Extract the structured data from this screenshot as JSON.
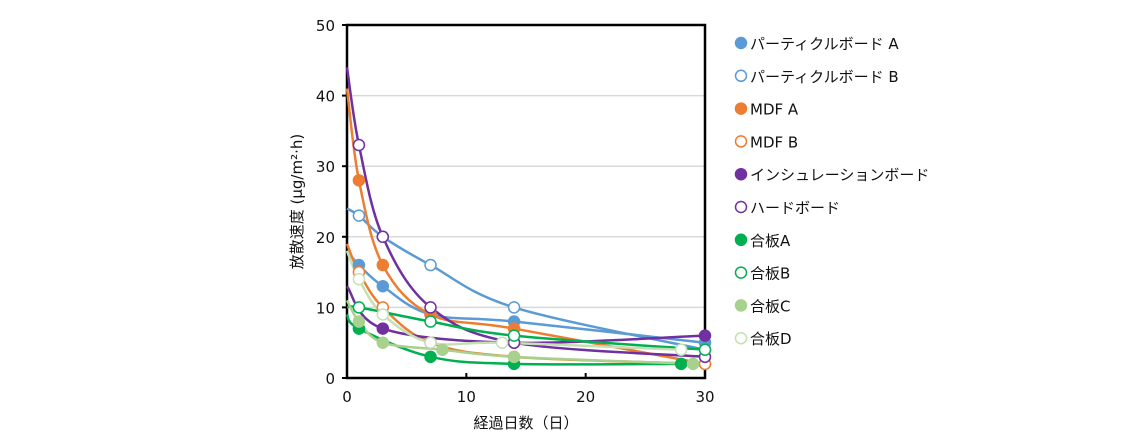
{
  "chart_data": {
    "type": "line",
    "title": "",
    "xlabel": "経過日数（日）",
    "ylabel": "放散速度 (µg/m²·h)",
    "xlim": [
      0,
      30
    ],
    "ylim": [
      0,
      50
    ],
    "xticks": [
      "0",
      "10",
      "20",
      "30"
    ],
    "yticks": [
      "0",
      "10",
      "20",
      "30",
      "40",
      "50"
    ],
    "grid": "horizontal",
    "legend_position": "right",
    "series": [
      {
        "name": "パーティクルボード A",
        "color": "#5b9bd5",
        "filled": true,
        "y0": 18,
        "points": [
          [
            1,
            16
          ],
          [
            3,
            13
          ],
          [
            7,
            9
          ],
          [
            14,
            8
          ],
          [
            30,
            5
          ]
        ]
      },
      {
        "name": "パーティクルボード B",
        "color": "#5b9bd5",
        "filled": false,
        "y0": 24,
        "points": [
          [
            1,
            23
          ],
          [
            3,
            20
          ],
          [
            7,
            16
          ],
          [
            14,
            10
          ],
          [
            30,
            4
          ]
        ]
      },
      {
        "name": "MDF A",
        "color": "#ed7d31",
        "filled": true,
        "y0": 41,
        "points": [
          [
            1,
            28
          ],
          [
            3,
            16
          ],
          [
            7,
            9
          ],
          [
            14,
            7
          ],
          [
            30,
            2
          ]
        ]
      },
      {
        "name": "MDF B",
        "color": "#ed7d31",
        "filled": false,
        "y0": 19,
        "points": [
          [
            1,
            15
          ],
          [
            3,
            10
          ],
          [
            7,
            5
          ],
          [
            14,
            3
          ],
          [
            30,
            2
          ]
        ]
      },
      {
        "name": "インシュレーションボード",
        "color": "#7030a0",
        "filled": true,
        "y0": 13,
        "points": [
          [
            3,
            7
          ],
          [
            14,
            5
          ],
          [
            30,
            6
          ]
        ]
      },
      {
        "name": "ハードボード",
        "color": "#7030a0",
        "filled": false,
        "y0": 44,
        "points": [
          [
            1,
            33
          ],
          [
            3,
            20
          ],
          [
            7,
            10
          ],
          [
            14,
            5
          ],
          [
            30,
            3
          ]
        ]
      },
      {
        "name": "合板A",
        "color": "#00b050",
        "filled": true,
        "y0": 9,
        "points": [
          [
            1,
            7
          ],
          [
            7,
            3
          ],
          [
            14,
            2
          ],
          [
            28,
            2
          ]
        ]
      },
      {
        "name": "合板B",
        "color": "#00b050",
        "filled": false,
        "y0": 10,
        "points": [
          [
            1,
            10
          ],
          [
            7,
            8
          ],
          [
            14,
            6
          ],
          [
            30,
            4
          ]
        ]
      },
      {
        "name": "合板C",
        "color": "#a9d18e",
        "filled": true,
        "y0": 11,
        "points": [
          [
            1,
            8
          ],
          [
            3,
            5
          ],
          [
            8,
            4
          ],
          [
            14,
            3
          ],
          [
            29,
            2
          ]
        ]
      },
      {
        "name": "合板D",
        "color": "#c5e0b4",
        "filled": false,
        "y0": 18,
        "points": [
          [
            1,
            14
          ],
          [
            3,
            9
          ],
          [
            7,
            5
          ],
          [
            13,
            5
          ],
          [
            28,
            4
          ]
        ]
      }
    ]
  }
}
